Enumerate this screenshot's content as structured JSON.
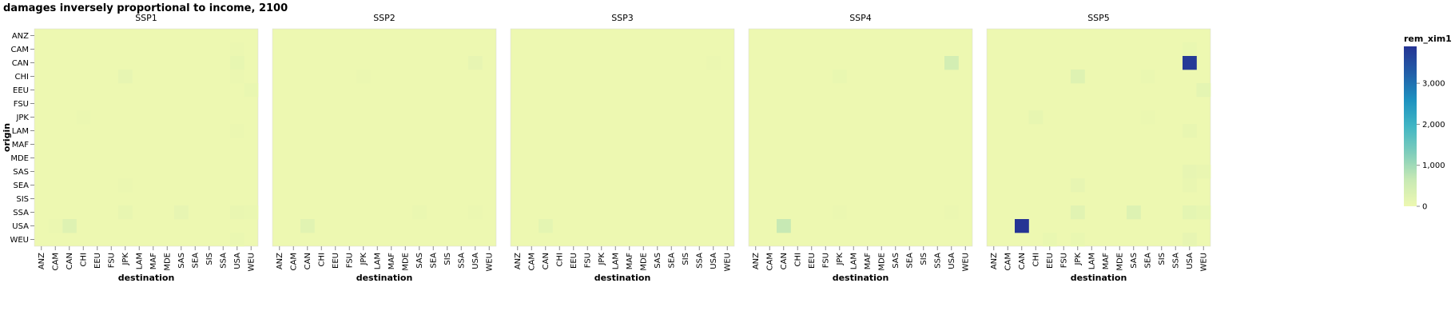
{
  "chart_data": {
    "type": "heatmap",
    "title": "damages inversely proportional to income, 2100",
    "xlabel": "destination",
    "ylabel": "origin",
    "regions": [
      "ANZ",
      "CAM",
      "CAN",
      "CHI",
      "EEU",
      "FSU",
      "JPK",
      "LAM",
      "MAF",
      "MDE",
      "SAS",
      "SEA",
      "SIS",
      "SSA",
      "USA",
      "WEU"
    ],
    "facets": [
      "SSP1",
      "SSP2",
      "SSP3",
      "SSP4",
      "SSP5"
    ],
    "legend": {
      "title": "rem_xim1",
      "domain": [
        0,
        3900
      ],
      "ticks": [
        0,
        1000,
        2000,
        3000
      ],
      "tick_labels": [
        "0",
        "1,000",
        "2,000",
        "3,000"
      ],
      "colors": [
        "#edf8b1",
        "#c7e9b4",
        "#7fcdbb",
        "#41b6c4",
        "#1d91c0",
        "#225ea8",
        "#253494"
      ]
    },
    "background_value": 0,
    "cells": [
      {
        "facet": "SSP1",
        "origin": "CAM",
        "destination": "USA",
        "value": 40
      },
      {
        "facet": "SSP1",
        "origin": "CAN",
        "destination": "USA",
        "value": 100
      },
      {
        "facet": "SSP1",
        "origin": "CHI",
        "destination": "JPK",
        "value": 110
      },
      {
        "facet": "SSP1",
        "origin": "CHI",
        "destination": "USA",
        "value": 40
      },
      {
        "facet": "SSP1",
        "origin": "EEU",
        "destination": "WEU",
        "value": 60
      },
      {
        "facet": "SSP1",
        "origin": "JPK",
        "destination": "CHI",
        "value": 40
      },
      {
        "facet": "SSP1",
        "origin": "LAM",
        "destination": "USA",
        "value": 40
      },
      {
        "facet": "SSP1",
        "origin": "SEA",
        "destination": "JPK",
        "value": 40
      },
      {
        "facet": "SSP1",
        "origin": "SSA",
        "destination": "JPK",
        "value": 90
      },
      {
        "facet": "SSP1",
        "origin": "SSA",
        "destination": "SAS",
        "value": 110
      },
      {
        "facet": "SSP1",
        "origin": "SSA",
        "destination": "USA",
        "value": 70
      },
      {
        "facet": "SSP1",
        "origin": "SSA",
        "destination": "WEU",
        "value": 50
      },
      {
        "facet": "SSP1",
        "origin": "USA",
        "destination": "CAN",
        "value": 260
      },
      {
        "facet": "SSP1",
        "origin": "USA",
        "destination": "CAM",
        "value": 40
      },
      {
        "facet": "SSP1",
        "origin": "WEU",
        "destination": "USA",
        "value": 50
      },
      {
        "facet": "SSP2",
        "origin": "CAN",
        "destination": "USA",
        "value": 110
      },
      {
        "facet": "SSP2",
        "origin": "CHI",
        "destination": "JPK",
        "value": 40
      },
      {
        "facet": "SSP2",
        "origin": "SSA",
        "destination": "SAS",
        "value": 50
      },
      {
        "facet": "SSP2",
        "origin": "SSA",
        "destination": "USA",
        "value": 40
      },
      {
        "facet": "SSP2",
        "origin": "USA",
        "destination": "CAN",
        "value": 200
      },
      {
        "facet": "SSP3",
        "origin": "CAN",
        "destination": "USA",
        "value": 40
      },
      {
        "facet": "SSP3",
        "origin": "USA",
        "destination": "CAN",
        "value": 150
      },
      {
        "facet": "SSP4",
        "origin": "CAN",
        "destination": "USA",
        "value": 450
      },
      {
        "facet": "SSP4",
        "origin": "CHI",
        "destination": "JPK",
        "value": 60
      },
      {
        "facet": "SSP4",
        "origin": "SSA",
        "destination": "JPK",
        "value": 40
      },
      {
        "facet": "SSP4",
        "origin": "SSA",
        "destination": "USA",
        "value": 40
      },
      {
        "facet": "SSP4",
        "origin": "USA",
        "destination": "CAN",
        "value": 650
      },
      {
        "facet": "SSP5",
        "origin": "CAM",
        "destination": "USA",
        "value": 60
      },
      {
        "facet": "SSP5",
        "origin": "CAN",
        "destination": "USA",
        "value": 3800
      },
      {
        "facet": "SSP5",
        "origin": "CHI",
        "destination": "JPK",
        "value": 260
      },
      {
        "facet": "SSP5",
        "origin": "CHI",
        "destination": "SEA",
        "value": 50
      },
      {
        "facet": "SSP5",
        "origin": "EEU",
        "destination": "WEU",
        "value": 150
      },
      {
        "facet": "SSP5",
        "origin": "JPK",
        "destination": "CHI",
        "value": 100
      },
      {
        "facet": "SSP5",
        "origin": "JPK",
        "destination": "SEA",
        "value": 40
      },
      {
        "facet": "SSP5",
        "origin": "LAM",
        "destination": "USA",
        "value": 90
      },
      {
        "facet": "SSP5",
        "origin": "SAS",
        "destination": "USA",
        "value": 110
      },
      {
        "facet": "SSP5",
        "origin": "SAS",
        "destination": "WEU",
        "value": 70
      },
      {
        "facet": "SSP5",
        "origin": "SEA",
        "destination": "JPK",
        "value": 110
      },
      {
        "facet": "SSP5",
        "origin": "SEA",
        "destination": "USA",
        "value": 70
      },
      {
        "facet": "SSP5",
        "origin": "SSA",
        "destination": "JPK",
        "value": 200
      },
      {
        "facet": "SSP5",
        "origin": "SSA",
        "destination": "SAS",
        "value": 270
      },
      {
        "facet": "SSP5",
        "origin": "SSA",
        "destination": "USA",
        "value": 150
      },
      {
        "facet": "SSP5",
        "origin": "SSA",
        "destination": "WEU",
        "value": 100
      },
      {
        "facet": "SSP5",
        "origin": "USA",
        "destination": "CAN",
        "value": 3900
      },
      {
        "facet": "SSP5",
        "origin": "WEU",
        "destination": "USA",
        "value": 110
      },
      {
        "facet": "SSP5",
        "origin": "WEU",
        "destination": "EEU",
        "value": 60
      },
      {
        "facet": "SSP5",
        "origin": "WEU",
        "destination": "JPK",
        "value": 60
      }
    ]
  }
}
